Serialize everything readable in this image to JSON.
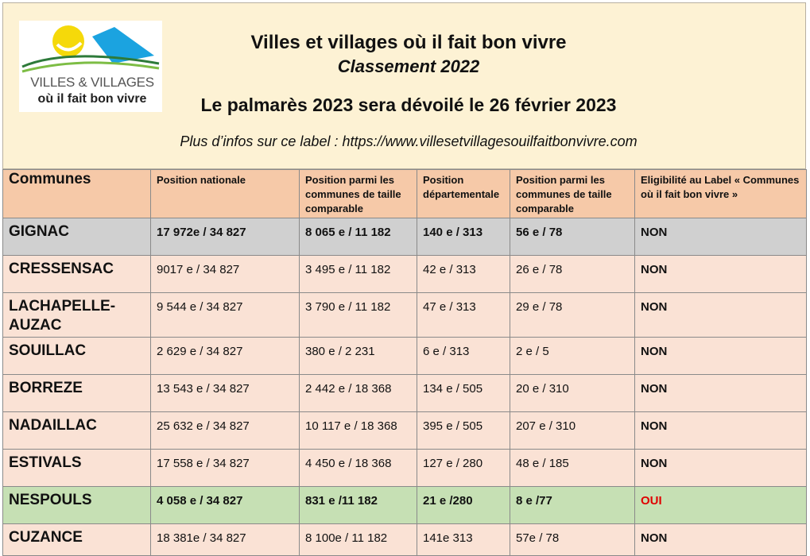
{
  "logo": {
    "line1": "VILLES & VILLAGES",
    "line2": "où il fait bon vivre"
  },
  "header": {
    "title": "Villes et villages où il fait bon vivre",
    "subtitle": "Classement 2022",
    "announcement": "Le palmarès 2023 sera dévoilé le 26 février 2023",
    "info": "Plus d’infos sur ce label : https://www.villesetvillagesouilfaitbonvivre.com"
  },
  "table": {
    "headers": [
      "Communes",
      "Position nationale",
      "Position parmi les communes de taille comparable",
      "Position départementale",
      "Position parmi les communes de taille comparable",
      "Eligibilité au Label « Communes où il fait bon vivre »"
    ],
    "rows": [
      {
        "commune": "GIGNAC",
        "nat": "17 972e / 34 827",
        "taille": "8 065 e / 11 182",
        "dep": "140 e / 313",
        "taille_dep": "56 e / 78",
        "elig": "NON"
      },
      {
        "commune": "CRESSENSAC",
        "nat": "9017 e / 34 827",
        "taille": "3 495 e / 11 182",
        "dep": "42 e / 313",
        "taille_dep": "26 e / 78",
        "elig": "NON"
      },
      {
        "commune": "LACHAPELLE-AUZAC",
        "nat": "9 544 e / 34 827",
        "taille": "3 790 e / 11 182",
        "dep": "47 e / 313",
        "taille_dep": "29 e / 78",
        "elig": "NON"
      },
      {
        "commune": "SOUILLAC",
        "nat": "2 629 e / 34 827",
        "taille": "380 e / 2 231",
        "dep": "6 e / 313",
        "taille_dep": "2 e / 5",
        "elig": "NON"
      },
      {
        "commune": "BORREZE",
        "nat": "13 543 e / 34 827",
        "taille": "2 442 e / 18 368",
        "dep": "134 e / 505",
        "taille_dep": "20 e / 310",
        "elig": "NON"
      },
      {
        "commune": "NADAILLAC",
        "nat": "25 632 e / 34 827",
        "taille": "10 117 e / 18 368",
        "dep": "395 e / 505",
        "taille_dep": "207 e / 310",
        "elig": "NON"
      },
      {
        "commune": "ESTIVALS",
        "nat": "17 558 e / 34 827",
        "taille": "4 450 e / 18 368",
        "dep": "127 e / 280",
        "taille_dep": "48 e / 185",
        "elig": "NON"
      },
      {
        "commune": "NESPOULS",
        "nat": "4 058 e / 34 827",
        "taille": "831 e /11 182",
        "dep": "21 e /280",
        "taille_dep": "8 e /77",
        "elig": "OUI"
      },
      {
        "commune": "CUZANCE",
        "nat": "18 381e / 34 827",
        "taille": "8 100e / 11 182",
        "dep": "141e 313",
        "taille_dep": "57e / 78",
        "elig": "NON"
      }
    ]
  },
  "colors": {
    "header_bg": "#fdf2d4",
    "table_header_bg": "#f6c9a8",
    "row_bg": "#fae2d5",
    "gignac_bg": "#d0d0d0",
    "nespouls_bg": "#c6e0b4",
    "oui_color": "#e00000"
  }
}
